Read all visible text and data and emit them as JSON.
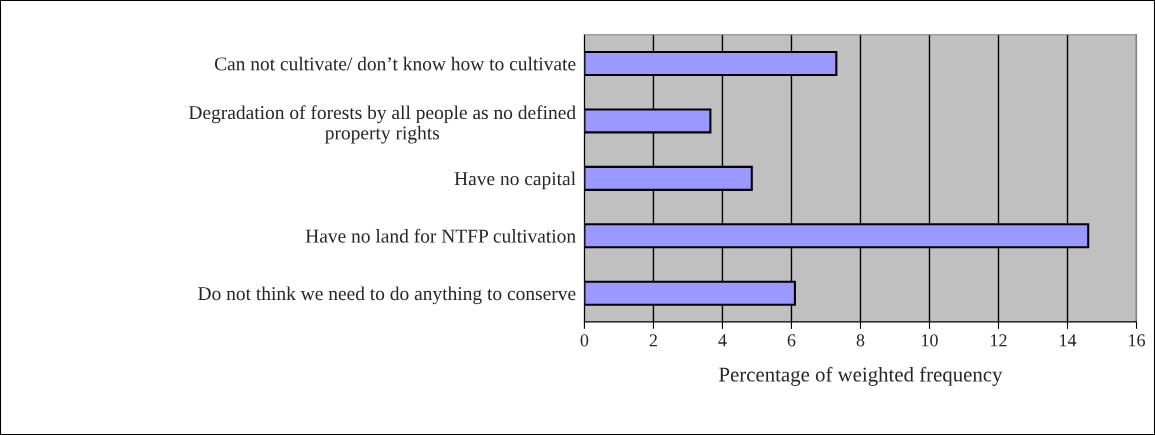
{
  "chart_data": {
    "type": "bar",
    "orientation": "horizontal",
    "categories": [
      "Can not cultivate/ don’t know how to cultivate",
      "Degradation of forests by all people as no defined\nproperty rights",
      "Have no capital",
      "Have no land for NTFP cultivation",
      "Do not think we need to do anything to conserve"
    ],
    "values": [
      7.3,
      3.65,
      4.85,
      14.6,
      6.1
    ],
    "color": "#9999ff",
    "xlim": [
      0,
      16
    ],
    "xticks": [
      0,
      2,
      4,
      6,
      8,
      10,
      12,
      14,
      16
    ],
    "xlabel": "Percentage of weighted frequency",
    "grid": "x",
    "legend": false
  }
}
